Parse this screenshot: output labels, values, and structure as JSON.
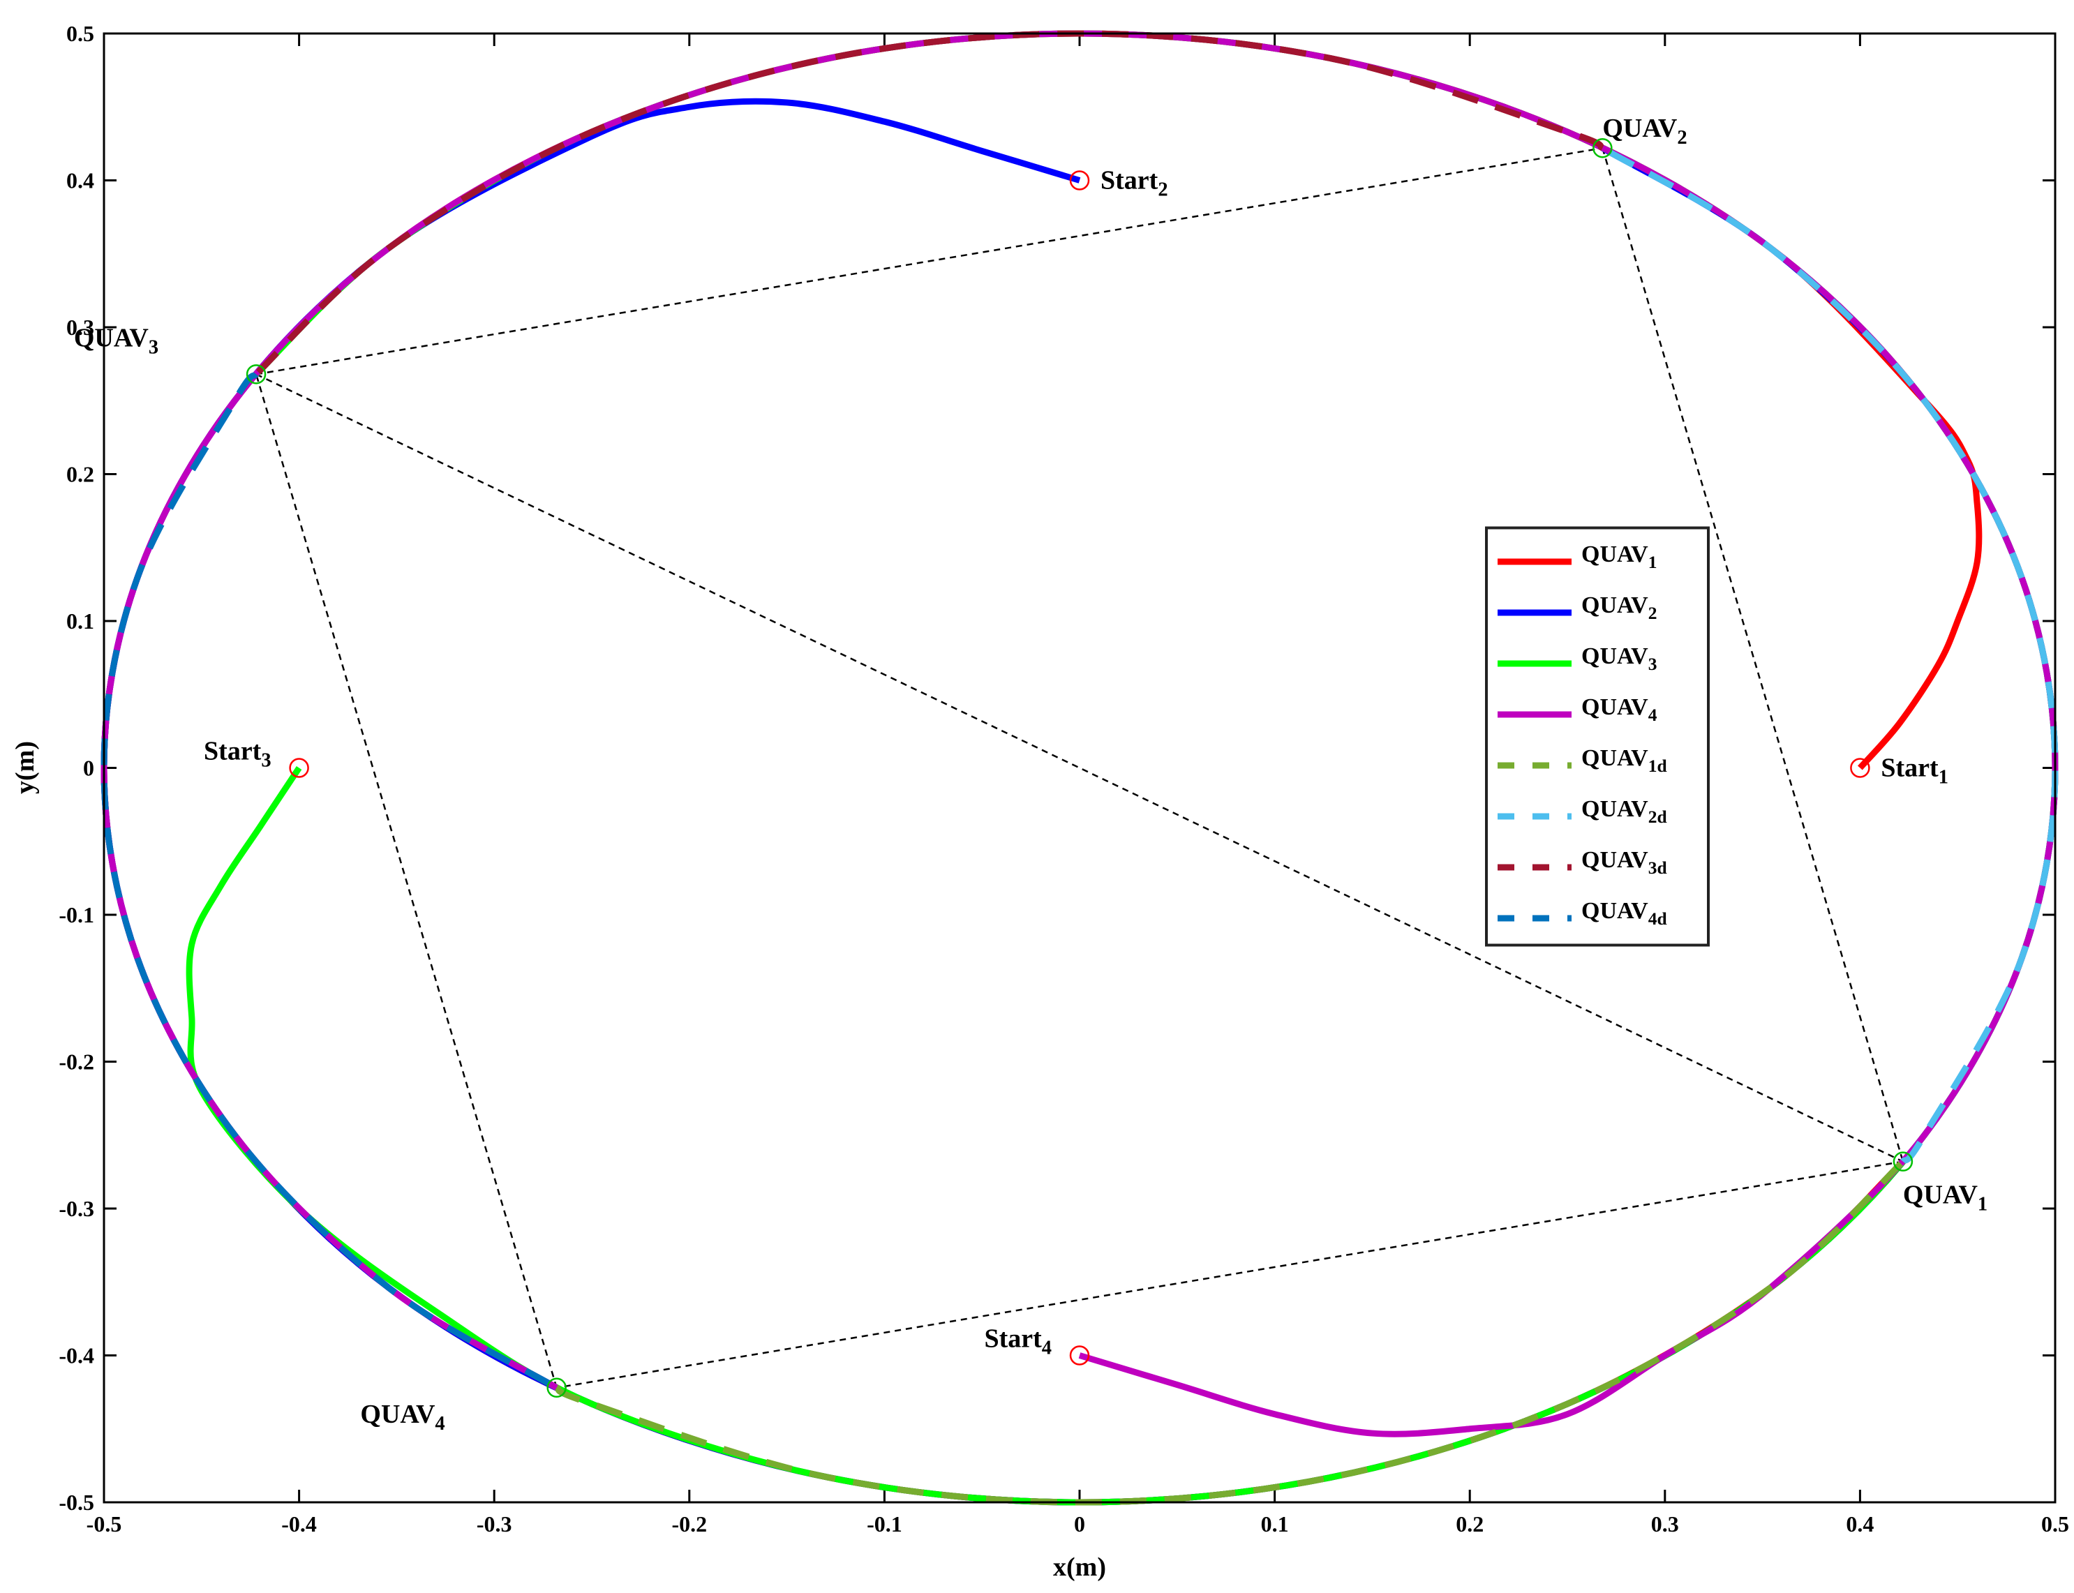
{
  "chart_data": {
    "type": "line",
    "xlabel": "x(m)",
    "ylabel": "y(m)",
    "xlim": [
      -0.5,
      0.5
    ],
    "ylim": [
      -0.5,
      0.5
    ],
    "xticks": [
      -0.5,
      -0.4,
      -0.3,
      -0.2,
      -0.1,
      0,
      0.1,
      0.2,
      0.3,
      0.4,
      0.5
    ],
    "yticks": [
      -0.5,
      -0.4,
      -0.3,
      -0.2,
      -0.1,
      0,
      0.1,
      0.2,
      0.3,
      0.4,
      0.5
    ],
    "legend": "center right",
    "series": [
      {
        "name": "QUAV1",
        "color": "#ff0000",
        "dashed": false,
        "x": [
          0.4,
          0.42,
          0.44,
          0.45,
          0.46,
          0.46,
          0.455,
          0.433,
          0.354,
          0.25,
          0.129,
          0,
          -0.129,
          -0.25,
          -0.354,
          -0.433,
          -0.483,
          -0.5,
          -0.483,
          -0.433,
          -0.354,
          -0.25,
          -0.129,
          0,
          0.129,
          0.25,
          0.354,
          0.422
        ],
        "y": [
          0,
          0.03,
          0.07,
          0.1,
          0.14,
          0.18,
          0.21,
          0.25,
          0.354,
          0.433,
          0.483,
          0.5,
          0.483,
          0.433,
          0.354,
          0.25,
          0.129,
          0,
          -0.129,
          -0.25,
          -0.354,
          -0.433,
          -0.483,
          -0.5,
          -0.483,
          -0.433,
          -0.354,
          -0.268
        ]
      },
      {
        "name": "QUAV2",
        "color": "#0000ff",
        "dashed": false,
        "x": [
          0,
          -0.05,
          -0.1,
          -0.15,
          -0.2,
          -0.25,
          -0.354,
          -0.433,
          -0.483,
          -0.5,
          -0.483,
          -0.433,
          -0.354,
          -0.25,
          -0.129,
          0,
          0.129,
          0.25,
          0.354,
          0.433,
          0.483,
          0.5,
          0.483,
          0.433,
          0.354,
          0.268
        ],
        "y": [
          0.4,
          0.42,
          0.44,
          0.453,
          0.45,
          0.43,
          0.354,
          0.25,
          0.129,
          0,
          -0.129,
          -0.25,
          -0.354,
          -0.433,
          -0.483,
          -0.5,
          -0.483,
          -0.433,
          -0.354,
          -0.25,
          -0.129,
          0,
          0.129,
          0.25,
          0.354,
          0.422
        ]
      },
      {
        "name": "QUAV3",
        "color": "#00ff00",
        "dashed": false,
        "x": [
          -0.4,
          -0.42,
          -0.44,
          -0.455,
          -0.455,
          -0.45,
          -0.4,
          -0.33,
          -0.25,
          -0.129,
          0,
          0.129,
          0.25,
          0.354,
          0.433,
          0.483,
          0.5,
          0.483,
          0.433,
          0.354,
          0.25,
          0.129,
          0,
          -0.129,
          -0.25,
          -0.354,
          -0.422
        ],
        "y": [
          0,
          -0.04,
          -0.08,
          -0.12,
          -0.17,
          -0.22,
          -0.3,
          -0.37,
          -0.433,
          -0.483,
          -0.5,
          -0.483,
          -0.433,
          -0.354,
          -0.25,
          -0.129,
          0,
          0.129,
          0.25,
          0.354,
          0.433,
          0.483,
          0.5,
          0.483,
          0.433,
          0.354,
          0.268
        ]
      },
      {
        "name": "QUAV4",
        "color": "#bf00bf",
        "dashed": false,
        "x": [
          0,
          0.05,
          0.1,
          0.15,
          0.2,
          0.25,
          0.3,
          0.354,
          0.433,
          0.483,
          0.5,
          0.483,
          0.433,
          0.354,
          0.25,
          0.129,
          0,
          -0.129,
          -0.25,
          -0.354,
          -0.433,
          -0.483,
          -0.5,
          -0.483,
          -0.433,
          -0.354,
          -0.268
        ],
        "y": [
          -0.4,
          -0.42,
          -0.44,
          -0.453,
          -0.45,
          -0.44,
          -0.4,
          -0.354,
          -0.25,
          -0.129,
          0,
          0.129,
          0.25,
          0.354,
          0.433,
          0.483,
          0.5,
          0.483,
          0.433,
          0.354,
          0.25,
          0.129,
          0,
          -0.129,
          -0.25,
          -0.354,
          -0.422
        ]
      },
      {
        "name": "QUAV1d",
        "color": "#77ac30",
        "dashed": true,
        "x": [
          -0.268,
          -0.25,
          -0.129,
          0,
          0.129,
          0.25,
          0.354,
          0.422
        ],
        "y": [
          -0.422,
          -0.433,
          -0.483,
          -0.5,
          -0.483,
          -0.433,
          -0.354,
          -0.268
        ]
      },
      {
        "name": "QUAV2d",
        "color": "#4dbeee",
        "dashed": true,
        "x": [
          0.422,
          0.433,
          0.483,
          0.5,
          0.483,
          0.433,
          0.354,
          0.268
        ],
        "y": [
          -0.268,
          -0.25,
          -0.129,
          0,
          0.129,
          0.25,
          0.354,
          0.422
        ]
      },
      {
        "name": "QUAV3d",
        "color": "#a2142f",
        "dashed": true,
        "x": [
          0.268,
          0.25,
          0.129,
          0,
          -0.129,
          -0.25,
          -0.354,
          -0.422
        ],
        "y": [
          0.422,
          0.433,
          0.483,
          0.5,
          0.483,
          0.433,
          0.354,
          0.268
        ]
      },
      {
        "name": "QUAV4d",
        "color": "#0072bd",
        "dashed": true,
        "x": [
          -0.422,
          -0.433,
          -0.483,
          -0.5,
          -0.483,
          -0.433,
          -0.354,
          -0.268
        ],
        "y": [
          0.268,
          0.25,
          0.129,
          0,
          -0.129,
          -0.25,
          -0.354,
          -0.422
        ]
      }
    ],
    "start_points": {
      "color": "#ff0000",
      "x": [
        0.4,
        0,
        -0.4,
        0
      ],
      "y": [
        0,
        0.4,
        0,
        -0.4
      ],
      "labels": [
        "Start1",
        "Start2",
        "Start3",
        "Start4"
      ]
    },
    "final_points": {
      "color": "#00c000",
      "x": [
        0.422,
        0.268,
        -0.422,
        -0.268
      ],
      "y": [
        -0.268,
        0.422,
        0.268,
        -0.422
      ],
      "labels": [
        "QUAV1",
        "QUAV2",
        "QUAV3",
        "QUAV4"
      ]
    }
  }
}
